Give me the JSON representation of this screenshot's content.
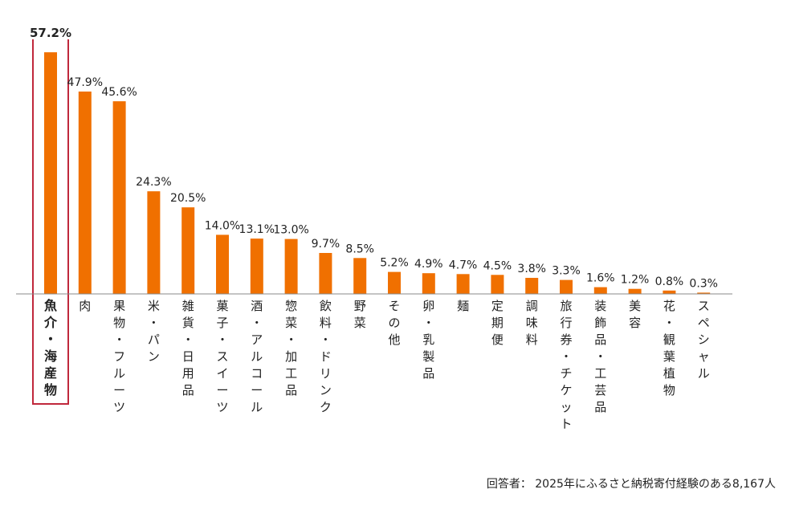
{
  "colors": {
    "bar": "#f07000",
    "highlight_box": "#c0283c",
    "axis": "#888888",
    "text": "#222222"
  },
  "footnote": "回答者： 2025年にふるさと納税寄付経験のある8,167人",
  "chart_data": {
    "type": "bar",
    "title": "",
    "xlabel": "",
    "ylabel": "",
    "ylim": [
      0,
      60
    ],
    "grid": false,
    "legend": "none",
    "highlight_index": 0,
    "categories": [
      "魚介・海産物",
      "肉",
      "果物・フルーツ",
      "米・パン",
      "雑貨・日用品",
      "菓子・スイーツ",
      "酒・アルコール",
      "惣菜・加工品",
      "飲料・ドリンク",
      "野菜",
      "その他",
      "卵・乳製品",
      "麺",
      "定期便",
      "調味料",
      "旅行券・チケット",
      "装飾品・工芸品",
      "美容",
      "花・観葉植物",
      "スペシャル"
    ],
    "values": [
      57.2,
      47.9,
      45.6,
      24.3,
      20.5,
      14.0,
      13.1,
      13.0,
      9.7,
      8.5,
      5.2,
      4.9,
      4.7,
      4.5,
      3.8,
      3.3,
      1.6,
      1.2,
      0.8,
      0.3
    ],
    "value_labels": [
      "57.2%",
      "47.9%",
      "45.6%",
      "24.3%",
      "20.5%",
      "14.0%",
      "13.1%",
      "13.0%",
      "9.7%",
      "8.5%",
      "5.2%",
      "4.9%",
      "4.7%",
      "4.5%",
      "3.8%",
      "3.3%",
      "1.6%",
      "1.2%",
      "0.8%",
      "0.3%"
    ]
  }
}
